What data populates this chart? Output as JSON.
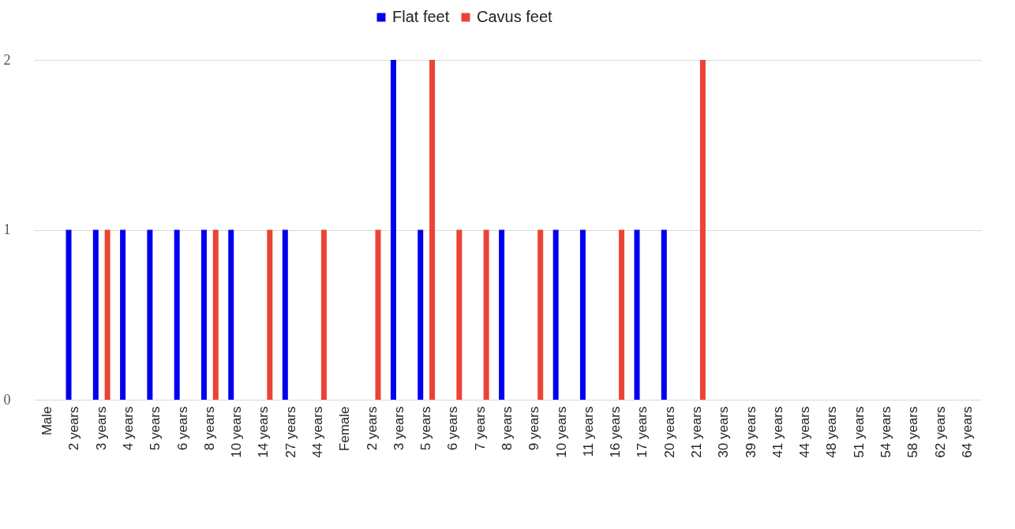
{
  "chart_data": {
    "type": "bar",
    "categories": [
      "Male",
      "2 years",
      "3 years",
      "4 years",
      "5 years",
      "6 years",
      "8 years",
      "10 years",
      "14 years",
      "27 years",
      "44 years",
      "Female",
      "2 years",
      "3 years",
      "5 years",
      "6 years",
      "7 years",
      "8 years",
      "9 years",
      "10 years",
      "11 years",
      "16 years",
      "17 years",
      "20 years",
      "21 years",
      "30 years",
      "39 years",
      "41 years",
      "44 years",
      "48 years",
      "51 years",
      "54 years",
      "58 years",
      "62 years",
      "64 years"
    ],
    "series": [
      {
        "name": "Flat feet",
        "color": "#0000ee",
        "values": [
          0,
          1,
          1,
          1,
          1,
          1,
          1,
          1,
          0,
          1,
          0,
          0,
          0,
          2,
          1,
          0,
          0,
          1,
          0,
          1,
          1,
          0,
          1,
          1,
          0,
          0,
          0,
          0,
          0,
          0,
          0,
          0,
          0,
          0,
          0
        ]
      },
      {
        "name": "Cavus feet",
        "color": "#ea4335",
        "values": [
          0,
          0,
          1,
          0,
          0,
          0,
          1,
          0,
          1,
          0,
          1,
          0,
          1,
          0,
          2,
          1,
          1,
          0,
          1,
          0,
          0,
          1,
          0,
          0,
          2,
          0,
          0,
          0,
          0,
          0,
          0,
          0,
          0,
          0,
          0
        ]
      }
    ],
    "ylim": [
      0,
      2
    ],
    "yticks": [
      0,
      1,
      2
    ],
    "grid": "y",
    "legend": "top"
  }
}
